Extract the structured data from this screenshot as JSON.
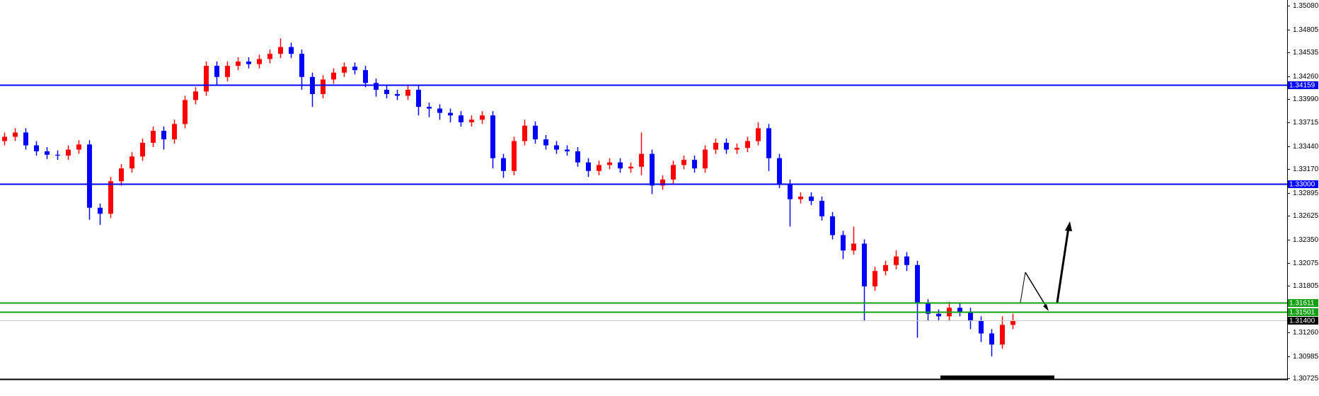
{
  "chart_data": {
    "type": "candlestick",
    "up_color": "#ff0000",
    "down_color": "#0000ff",
    "ylim": [
      1.307,
      1.3515
    ],
    "yticks": [
      {
        "value": 1.3508,
        "label": "1.35080"
      },
      1.34805,
      1.34535,
      {
        "value": 1.3426,
        "label": "1.34260"
      },
      {
        "value": 1.3399,
        "label": "1.33990"
      },
      1.33715,
      {
        "value": 1.3344,
        "label": "1.33440"
      },
      {
        "value": 1.3317,
        "label": "1.33170"
      },
      1.32895,
      1.32625,
      {
        "value": 1.3235,
        "label": "1.32350"
      },
      1.32075,
      1.31805,
      {
        "value": 1.3126,
        "label": "1.31260"
      },
      1.30985,
      1.30725
    ],
    "levels": [
      {
        "value": 1.34159,
        "color": "#0000ff"
      },
      {
        "value": 1.33,
        "label": "1.33000",
        "color": "#0000ff"
      },
      {
        "value": 1.31611,
        "color": "#12a012"
      },
      {
        "value": 1.31501,
        "color": "#12a012"
      }
    ],
    "current_price": {
      "value": 1.314,
      "label": "1.31400",
      "color": "#000000"
    },
    "series": {
      "open": [
        1.335,
        1.3355,
        1.336,
        1.3345,
        1.3338,
        1.3334,
        1.3333,
        1.334,
        1.3346,
        1.3272,
        1.3265,
        1.3303,
        1.3318,
        1.3332,
        1.3348,
        1.3362,
        1.3352,
        1.337,
        1.3398,
        1.3408,
        1.3438,
        1.3425,
        1.3438,
        1.3443,
        1.344,
        1.3446,
        1.3452,
        1.346,
        1.3452,
        1.3425,
        1.3405,
        1.3422,
        1.343,
        1.3437,
        1.3433,
        1.3418,
        1.341,
        1.3405,
        1.3403,
        1.341,
        1.339,
        1.3388,
        1.3383,
        1.338,
        1.3372,
        1.3375,
        1.338,
        1.333,
        1.3315,
        1.335,
        1.3368,
        1.3352,
        1.3345,
        1.334,
        1.3338,
        1.3325,
        1.3315,
        1.3322,
        1.3325,
        1.3318,
        1.332,
        1.3335,
        1.3298,
        1.3305,
        1.3322,
        1.3328,
        1.3318,
        1.334,
        1.3348,
        1.334,
        1.3342,
        1.335,
        1.3365,
        1.333,
        1.33,
        1.3282,
        1.3285,
        1.328,
        1.3262,
        1.324,
        1.3222,
        1.323,
        1.318,
        1.3198,
        1.3205,
        1.3215,
        1.3205,
        1.316,
        1.3148,
        1.3145,
        1.3155,
        1.315,
        1.314,
        1.3125,
        1.3112,
        1.3135
      ],
      "high": [
        1.336,
        1.3365,
        1.3365,
        1.335,
        1.3343,
        1.3339,
        1.3345,
        1.3351,
        1.3351,
        1.3277,
        1.3308,
        1.3323,
        1.3337,
        1.3353,
        1.3367,
        1.3367,
        1.3375,
        1.3403,
        1.3413,
        1.3443,
        1.3443,
        1.3443,
        1.3448,
        1.3448,
        1.3451,
        1.3457,
        1.347,
        1.3465,
        1.3457,
        1.343,
        1.3427,
        1.3435,
        1.3442,
        1.3442,
        1.3438,
        1.3423,
        1.3415,
        1.341,
        1.3415,
        1.3415,
        1.3395,
        1.3393,
        1.3388,
        1.3385,
        1.338,
        1.3385,
        1.3385,
        1.3335,
        1.3355,
        1.3375,
        1.3373,
        1.3357,
        1.335,
        1.3345,
        1.3343,
        1.333,
        1.3327,
        1.333,
        1.333,
        1.3325,
        1.336,
        1.334,
        1.331,
        1.3327,
        1.3333,
        1.3333,
        1.3345,
        1.3353,
        1.3353,
        1.3347,
        1.3355,
        1.3372,
        1.337,
        1.3335,
        1.3305,
        1.329,
        1.329,
        1.3285,
        1.3267,
        1.3245,
        1.325,
        1.3235,
        1.3203,
        1.321,
        1.3222,
        1.322,
        1.321,
        1.3165,
        1.3153,
        1.3162,
        1.316,
        1.3155,
        1.3145,
        1.313,
        1.3145,
        1.3148
      ],
      "low": [
        1.3345,
        1.335,
        1.334,
        1.3333,
        1.3329,
        1.3328,
        1.3328,
        1.3335,
        1.3258,
        1.3252,
        1.326,
        1.3298,
        1.3313,
        1.3327,
        1.3343,
        1.334,
        1.3347,
        1.3365,
        1.3393,
        1.3403,
        1.3415,
        1.342,
        1.3433,
        1.3435,
        1.3435,
        1.3441,
        1.3447,
        1.3447,
        1.341,
        1.339,
        1.34,
        1.3417,
        1.3425,
        1.3428,
        1.3413,
        1.3402,
        1.34,
        1.3398,
        1.3398,
        1.338,
        1.3378,
        1.3375,
        1.3372,
        1.3367,
        1.3367,
        1.337,
        1.3318,
        1.3307,
        1.331,
        1.3345,
        1.3347,
        1.334,
        1.3335,
        1.3333,
        1.332,
        1.3308,
        1.331,
        1.3317,
        1.3313,
        1.3313,
        1.331,
        1.3288,
        1.3293,
        1.33,
        1.3317,
        1.3313,
        1.3313,
        1.3335,
        1.3335,
        1.3335,
        1.3337,
        1.3345,
        1.3315,
        1.3295,
        1.325,
        1.3277,
        1.3275,
        1.3257,
        1.3235,
        1.3212,
        1.3217,
        1.314,
        1.3175,
        1.3193,
        1.32,
        1.3198,
        1.312,
        1.314,
        1.314,
        1.314,
        1.3145,
        1.313,
        1.3115,
        1.3098,
        1.3107,
        1.313
      ],
      "close": [
        1.3355,
        1.336,
        1.3345,
        1.3338,
        1.3334,
        1.3333,
        1.334,
        1.3346,
        1.3272,
        1.3265,
        1.3303,
        1.3318,
        1.3332,
        1.3348,
        1.3362,
        1.3352,
        1.337,
        1.3398,
        1.3408,
        1.3438,
        1.3425,
        1.3438,
        1.3443,
        1.344,
        1.3446,
        1.3452,
        1.346,
        1.3452,
        1.3425,
        1.3405,
        1.3422,
        1.343,
        1.3437,
        1.3433,
        1.3418,
        1.341,
        1.3405,
        1.3403,
        1.341,
        1.339,
        1.3388,
        1.3383,
        1.338,
        1.3372,
        1.3375,
        1.338,
        1.333,
        1.3315,
        1.335,
        1.3368,
        1.3352,
        1.3345,
        1.334,
        1.3338,
        1.3325,
        1.3315,
        1.3322,
        1.3325,
        1.3318,
        1.332,
        1.3335,
        1.3298,
        1.3305,
        1.3322,
        1.3328,
        1.3318,
        1.334,
        1.3348,
        1.334,
        1.3342,
        1.335,
        1.3365,
        1.333,
        1.33,
        1.3282,
        1.3285,
        1.328,
        1.3262,
        1.324,
        1.3222,
        1.323,
        1.318,
        1.3198,
        1.3205,
        1.3215,
        1.3205,
        1.316,
        1.3148,
        1.3145,
        1.3155,
        1.315,
        1.314,
        1.3125,
        1.3112,
        1.3135,
        1.314
      ]
    }
  }
}
